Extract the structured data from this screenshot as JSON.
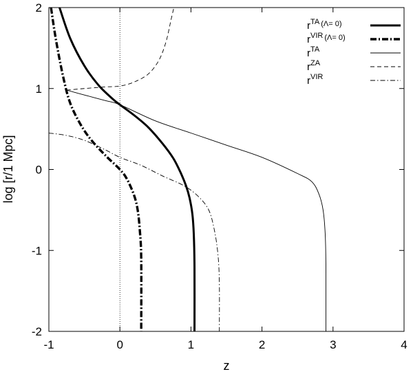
{
  "chart_data": {
    "type": "line",
    "xlabel": "z",
    "ylabel": "log [r/1 Mpc]",
    "xlim": [
      -1,
      4
    ],
    "ylim": [
      -2,
      2
    ],
    "xticks": [
      "-1",
      "0",
      "1",
      "2",
      "3",
      "4"
    ],
    "yticks": [
      "-2",
      "-1",
      "0",
      "1",
      "2"
    ],
    "grid": false,
    "legend_position": "top-right",
    "reference_lines": [
      {
        "axis": "x",
        "value": 0,
        "style": "dotted"
      }
    ],
    "series": [
      {
        "name": "r^TA (Λ= 0)",
        "style": "thick-solid",
        "points": [
          [
            -0.85,
            2.0
          ],
          [
            -0.7,
            1.62
          ],
          [
            -0.5,
            1.28
          ],
          [
            -0.3,
            1.04
          ],
          [
            -0.1,
            0.87
          ],
          [
            0.0,
            0.8
          ],
          [
            0.2,
            0.67
          ],
          [
            0.4,
            0.52
          ],
          [
            0.6,
            0.32
          ],
          [
            0.75,
            0.14
          ],
          [
            0.85,
            -0.03
          ],
          [
            0.93,
            -0.2
          ],
          [
            0.98,
            -0.35
          ],
          [
            1.02,
            -0.55
          ],
          [
            1.04,
            -0.8
          ],
          [
            1.05,
            -1.2
          ],
          [
            1.05,
            -2.0
          ]
        ]
      },
      {
        "name": "r^VIR (Λ= 0)",
        "style": "thick-dashdot",
        "points": [
          [
            -0.97,
            2.0
          ],
          [
            -0.9,
            1.6
          ],
          [
            -0.8,
            1.15
          ],
          [
            -0.7,
            0.82
          ],
          [
            -0.55,
            0.55
          ],
          [
            -0.4,
            0.36
          ],
          [
            -0.2,
            0.17
          ],
          [
            0.0,
            0.0
          ],
          [
            0.1,
            -0.12
          ],
          [
            0.2,
            -0.32
          ],
          [
            0.25,
            -0.5
          ],
          [
            0.28,
            -0.75
          ],
          [
            0.3,
            -1.1
          ],
          [
            0.3,
            -2.0
          ]
        ]
      },
      {
        "name": "r^TA",
        "style": "thin-solid",
        "points": [
          [
            -0.75,
            0.98
          ],
          [
            -0.5,
            0.92
          ],
          [
            -0.2,
            0.85
          ],
          [
            0.0,
            0.8
          ],
          [
            0.5,
            0.6
          ],
          [
            1.0,
            0.45
          ],
          [
            1.5,
            0.3
          ],
          [
            2.0,
            0.15
          ],
          [
            2.5,
            -0.05
          ],
          [
            2.7,
            -0.15
          ],
          [
            2.8,
            -0.3
          ],
          [
            2.86,
            -0.5
          ],
          [
            2.89,
            -0.8
          ],
          [
            2.9,
            -1.2
          ],
          [
            2.9,
            -2.0
          ]
        ]
      },
      {
        "name": "r^ZA",
        "style": "thin-dashed",
        "points": [
          [
            -0.75,
            0.98
          ],
          [
            -0.5,
            1.0
          ],
          [
            -0.2,
            1.02
          ],
          [
            0.0,
            1.03
          ],
          [
            0.2,
            1.08
          ],
          [
            0.4,
            1.18
          ],
          [
            0.55,
            1.35
          ],
          [
            0.65,
            1.58
          ],
          [
            0.72,
            1.85
          ],
          [
            0.76,
            2.0
          ]
        ]
      },
      {
        "name": "r^VIR",
        "style": "thin-dashdot",
        "points": [
          [
            -1.0,
            0.45
          ],
          [
            -0.75,
            0.42
          ],
          [
            -0.5,
            0.36
          ],
          [
            -0.2,
            0.24
          ],
          [
            0.0,
            0.15
          ],
          [
            0.3,
            0.05
          ],
          [
            0.6,
            -0.08
          ],
          [
            0.9,
            -0.2
          ],
          [
            1.1,
            -0.33
          ],
          [
            1.25,
            -0.5
          ],
          [
            1.33,
            -0.75
          ],
          [
            1.38,
            -1.05
          ],
          [
            1.4,
            -1.4
          ],
          [
            1.4,
            -2.0
          ]
        ]
      }
    ],
    "legend": [
      {
        "base": "r",
        "sup": "TA",
        "suffix": "(Λ= 0)"
      },
      {
        "base": "r",
        "sup": "VIR",
        "suffix": "(Λ= 0)"
      },
      {
        "base": "r",
        "sup": "TA",
        "suffix": ""
      },
      {
        "base": "r",
        "sup": "ZA",
        "suffix": ""
      },
      {
        "base": "r",
        "sup": "VIR",
        "suffix": ""
      }
    ]
  }
}
